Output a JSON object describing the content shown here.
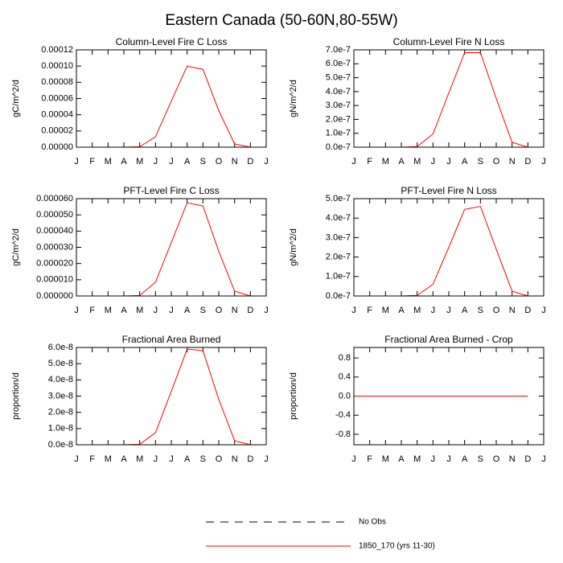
{
  "title": "Eastern Canada (50-60N,80-55W)",
  "legend": {
    "entries": [
      {
        "name": "No Obs",
        "color": "#000000",
        "dash": "10 8"
      },
      {
        "name": "1850_170 (yrs 11-30)",
        "color": "#ff0000",
        "dash": "none"
      }
    ]
  },
  "chart_data": [
    {
      "type": "line",
      "title": "Column-Level Fire C Loss",
      "y_label": "gC/m^2/d",
      "color": "#ff0000",
      "x": [
        0,
        1,
        2,
        3,
        4,
        5,
        6,
        7,
        8,
        9,
        10,
        11
      ],
      "values": [
        0,
        0,
        0,
        0,
        5e-07,
        1.3e-05,
        5.7e-05,
        0.0001,
        9.6e-05,
        4.5e-05,
        4e-06,
        0
      ],
      "xlim": [
        0,
        12
      ],
      "xticks": [
        {
          "value": 0,
          "label": "J"
        },
        {
          "value": 1,
          "label": "F"
        },
        {
          "value": 2,
          "label": "M"
        },
        {
          "value": 3,
          "label": "A"
        },
        {
          "value": 4,
          "label": "M"
        },
        {
          "value": 5,
          "label": "J"
        },
        {
          "value": 6,
          "label": "J"
        },
        {
          "value": 7,
          "label": "A"
        },
        {
          "value": 8,
          "label": "S"
        },
        {
          "value": 9,
          "label": "O"
        },
        {
          "value": 10,
          "label": "N"
        },
        {
          "value": 11,
          "label": "D"
        },
        {
          "value": 12,
          "label": "J"
        }
      ],
      "ylim": [
        0,
        0.00012
      ],
      "yticks": [
        {
          "value": 0,
          "label": "0.00000"
        },
        {
          "value": 2e-05,
          "label": "0.00002"
        },
        {
          "value": 4e-05,
          "label": "0.00004"
        },
        {
          "value": 6e-05,
          "label": "0.00006"
        },
        {
          "value": 8e-05,
          "label": "0.00008"
        },
        {
          "value": 0.0001,
          "label": "0.00010"
        },
        {
          "value": 0.00012,
          "label": "0.00012"
        }
      ]
    },
    {
      "type": "line",
      "title": "Column-Level Fire N Loss",
      "y_label": "gN/m^2/d",
      "color": "#ff0000",
      "x": [
        0,
        1,
        2,
        3,
        4,
        5,
        6,
        7,
        8,
        9,
        10,
        11
      ],
      "values": [
        0,
        0,
        0,
        0,
        4e-09,
        9.5e-08,
        3.9e-07,
        6.8e-07,
        6.8e-07,
        3.5e-07,
        3.5e-08,
        0
      ],
      "xlim": [
        0,
        12
      ],
      "xticks": [
        {
          "value": 0,
          "label": "J"
        },
        {
          "value": 1,
          "label": "F"
        },
        {
          "value": 2,
          "label": "M"
        },
        {
          "value": 3,
          "label": "A"
        },
        {
          "value": 4,
          "label": "M"
        },
        {
          "value": 5,
          "label": "J"
        },
        {
          "value": 6,
          "label": "J"
        },
        {
          "value": 7,
          "label": "A"
        },
        {
          "value": 8,
          "label": "S"
        },
        {
          "value": 9,
          "label": "O"
        },
        {
          "value": 10,
          "label": "N"
        },
        {
          "value": 11,
          "label": "D"
        },
        {
          "value": 12,
          "label": "J"
        }
      ],
      "ylim": [
        0,
        7e-07
      ],
      "yticks": [
        {
          "value": 0,
          "label": "0.0e-7"
        },
        {
          "value": 1e-07,
          "label": "1.0e-7"
        },
        {
          "value": 2e-07,
          "label": "2.0e-7"
        },
        {
          "value": 3e-07,
          "label": "3.0e-7"
        },
        {
          "value": 4e-07,
          "label": "4.0e-7"
        },
        {
          "value": 5e-07,
          "label": "5.0e-7"
        },
        {
          "value": 6e-07,
          "label": "6.0e-7"
        },
        {
          "value": 7e-07,
          "label": "7.0e-7"
        }
      ]
    },
    {
      "type": "line",
      "title": "PFT-Level Fire C Loss",
      "y_label": "gC/m^2/d",
      "color": "#ff0000",
      "x": [
        0,
        1,
        2,
        3,
        4,
        5,
        6,
        7,
        8,
        9,
        10,
        11
      ],
      "values": [
        0,
        0,
        0,
        0,
        3e-07,
        8.5e-06,
        3.3e-05,
        5.75e-05,
        5.55e-05,
        2.75e-05,
        3e-06,
        0
      ],
      "xlim": [
        0,
        12
      ],
      "xticks": [
        {
          "value": 0,
          "label": "J"
        },
        {
          "value": 1,
          "label": "F"
        },
        {
          "value": 2,
          "label": "M"
        },
        {
          "value": 3,
          "label": "A"
        },
        {
          "value": 4,
          "label": "M"
        },
        {
          "value": 5,
          "label": "J"
        },
        {
          "value": 6,
          "label": "J"
        },
        {
          "value": 7,
          "label": "A"
        },
        {
          "value": 8,
          "label": "S"
        },
        {
          "value": 9,
          "label": "O"
        },
        {
          "value": 10,
          "label": "N"
        },
        {
          "value": 11,
          "label": "D"
        },
        {
          "value": 12,
          "label": "J"
        }
      ],
      "ylim": [
        0,
        6e-05
      ],
      "yticks": [
        {
          "value": 0,
          "label": "0.000000"
        },
        {
          "value": 1e-05,
          "label": "0.000010"
        },
        {
          "value": 2e-05,
          "label": "0.000020"
        },
        {
          "value": 3e-05,
          "label": "0.000030"
        },
        {
          "value": 4e-05,
          "label": "0.000040"
        },
        {
          "value": 5e-05,
          "label": "0.000050"
        },
        {
          "value": 6e-05,
          "label": "0.000060"
        }
      ]
    },
    {
      "type": "line",
      "title": "PFT-Level Fire N Loss",
      "y_label": "gN/m^2/d",
      "color": "#ff0000",
      "x": [
        0,
        1,
        2,
        3,
        4,
        5,
        6,
        7,
        8,
        9,
        10,
        11
      ],
      "values": [
        0,
        0,
        0,
        0,
        3e-09,
        6e-08,
        2.5e-07,
        4.45e-07,
        4.6e-07,
        2.4e-07,
        2.5e-08,
        0
      ],
      "xlim": [
        0,
        12
      ],
      "xticks": [
        {
          "value": 0,
          "label": "J"
        },
        {
          "value": 1,
          "label": "F"
        },
        {
          "value": 2,
          "label": "M"
        },
        {
          "value": 3,
          "label": "A"
        },
        {
          "value": 4,
          "label": "M"
        },
        {
          "value": 5,
          "label": "J"
        },
        {
          "value": 6,
          "label": "J"
        },
        {
          "value": 7,
          "label": "A"
        },
        {
          "value": 8,
          "label": "S"
        },
        {
          "value": 9,
          "label": "O"
        },
        {
          "value": 10,
          "label": "N"
        },
        {
          "value": 11,
          "label": "D"
        },
        {
          "value": 12,
          "label": "J"
        }
      ],
      "ylim": [
        0,
        5e-07
      ],
      "yticks": [
        {
          "value": 0,
          "label": "0.0e-7"
        },
        {
          "value": 1e-07,
          "label": "1.0e-7"
        },
        {
          "value": 2e-07,
          "label": "2.0e-7"
        },
        {
          "value": 3e-07,
          "label": "3.0e-7"
        },
        {
          "value": 4e-07,
          "label": "4.0e-7"
        },
        {
          "value": 5e-07,
          "label": "5.0e-7"
        }
      ]
    },
    {
      "type": "line",
      "title": "Fractional Area Burned",
      "y_label": "proportion/d",
      "color": "#ff0000",
      "x": [
        0,
        1,
        2,
        3,
        4,
        5,
        6,
        7,
        8,
        9,
        10,
        11
      ],
      "values": [
        0,
        0,
        0,
        0,
        3e-10,
        7.5e-09,
        3.3e-08,
        5.9e-08,
        5.8e-08,
        2.8e-08,
        2.5e-09,
        0
      ],
      "xlim": [
        0,
        12
      ],
      "xticks": [
        {
          "value": 0,
          "label": "J"
        },
        {
          "value": 1,
          "label": "F"
        },
        {
          "value": 2,
          "label": "M"
        },
        {
          "value": 3,
          "label": "A"
        },
        {
          "value": 4,
          "label": "M"
        },
        {
          "value": 5,
          "label": "J"
        },
        {
          "value": 6,
          "label": "J"
        },
        {
          "value": 7,
          "label": "A"
        },
        {
          "value": 8,
          "label": "S"
        },
        {
          "value": 9,
          "label": "O"
        },
        {
          "value": 10,
          "label": "N"
        },
        {
          "value": 11,
          "label": "D"
        },
        {
          "value": 12,
          "label": "J"
        }
      ],
      "ylim": [
        0,
        6e-08
      ],
      "yticks": [
        {
          "value": 0,
          "label": "0.0e-8"
        },
        {
          "value": 1e-08,
          "label": "1.0e-8"
        },
        {
          "value": 2e-08,
          "label": "2.0e-8"
        },
        {
          "value": 3e-08,
          "label": "3.0e-8"
        },
        {
          "value": 4e-08,
          "label": "4.0e-8"
        },
        {
          "value": 5e-08,
          "label": "5.0e-8"
        },
        {
          "value": 6e-08,
          "label": "6.0e-8"
        }
      ]
    },
    {
      "type": "line",
      "title": "Fractional Area Burned - Crop",
      "y_label": "proportion/d",
      "color": "#ff0000",
      "x": [
        0,
        1,
        2,
        3,
        4,
        5,
        6,
        7,
        8,
        9,
        10,
        11
      ],
      "values": [
        0,
        0,
        0,
        0,
        0,
        0,
        0,
        0,
        0,
        0,
        0,
        0
      ],
      "xlim": [
        0,
        12
      ],
      "xticks": [
        {
          "value": 0,
          "label": "J"
        },
        {
          "value": 1,
          "label": "F"
        },
        {
          "value": 2,
          "label": "M"
        },
        {
          "value": 3,
          "label": "A"
        },
        {
          "value": 4,
          "label": "M"
        },
        {
          "value": 5,
          "label": "J"
        },
        {
          "value": 6,
          "label": "J"
        },
        {
          "value": 7,
          "label": "A"
        },
        {
          "value": 8,
          "label": "S"
        },
        {
          "value": 9,
          "label": "O"
        },
        {
          "value": 10,
          "label": "N"
        },
        {
          "value": 11,
          "label": "D"
        },
        {
          "value": 12,
          "label": "J"
        }
      ],
      "ylim": [
        -1.02,
        1.02
      ],
      "yticks": [
        -0.8,
        -0.4,
        {
          "value": 0,
          "label": "0.0"
        },
        0.4,
        0.8
      ]
    }
  ]
}
